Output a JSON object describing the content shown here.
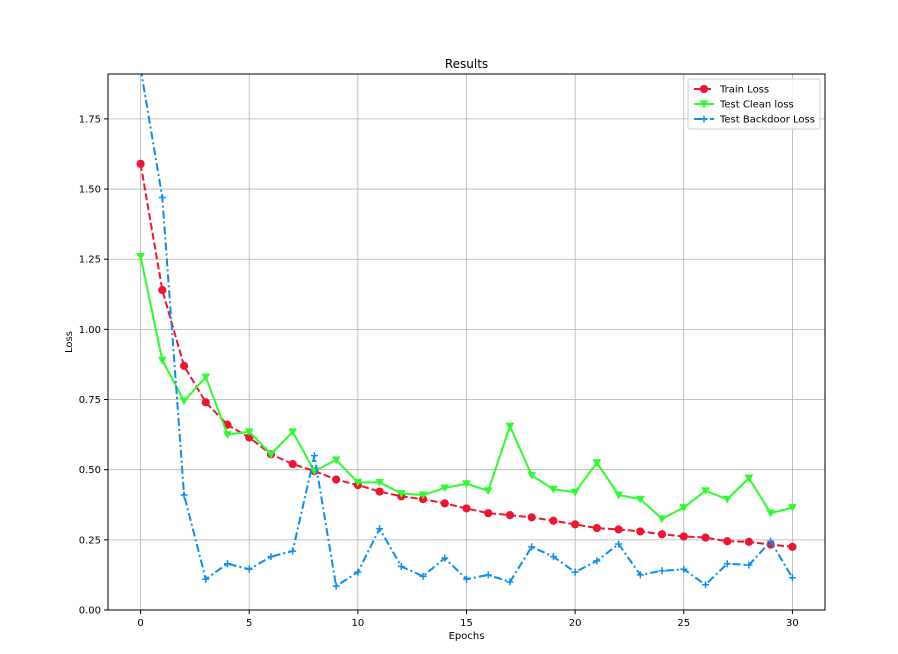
{
  "chart_data": {
    "type": "line",
    "title": "Results",
    "xlabel": "Epochs",
    "ylabel": "Loss",
    "xlim": [
      -1.5,
      31.5
    ],
    "ylim": [
      0.0,
      1.91
    ],
    "x_ticks": [
      0,
      5,
      10,
      15,
      20,
      25,
      30
    ],
    "y_ticks": [
      0.0,
      0.25,
      0.5,
      0.75,
      1.0,
      1.25,
      1.5,
      1.75
    ],
    "y_tick_labels": [
      "0.00",
      "0.25",
      "0.50",
      "0.75",
      "1.00",
      "1.25",
      "1.50",
      "1.75"
    ],
    "grid": true,
    "legend_position": "top-right",
    "x": [
      0,
      1,
      2,
      3,
      4,
      5,
      6,
      7,
      8,
      9,
      10,
      11,
      12,
      13,
      14,
      15,
      16,
      17,
      18,
      19,
      20,
      21,
      22,
      23,
      24,
      25,
      26,
      27,
      28,
      29,
      30
    ],
    "series": [
      {
        "name": "Train Loss",
        "color": "#f0142f",
        "linestyle": "dashed",
        "marker": "circle",
        "values": [
          1.59,
          1.14,
          0.87,
          0.74,
          0.66,
          0.615,
          0.555,
          0.52,
          0.495,
          0.465,
          0.445,
          0.422,
          0.405,
          0.395,
          0.38,
          0.362,
          0.345,
          0.338,
          0.33,
          0.318,
          0.305,
          0.292,
          0.287,
          0.28,
          0.27,
          0.262,
          0.258,
          0.245,
          0.243,
          0.233,
          0.225
        ]
      },
      {
        "name": "Test Clean loss",
        "color": "#2efc2e",
        "linestyle": "solid",
        "marker": "triangle-down",
        "values": [
          1.26,
          0.89,
          0.745,
          0.83,
          0.625,
          0.635,
          0.555,
          0.635,
          0.495,
          0.535,
          0.455,
          0.455,
          0.415,
          0.41,
          0.435,
          0.45,
          0.425,
          0.655,
          0.48,
          0.43,
          0.42,
          0.525,
          0.41,
          0.395,
          0.325,
          0.365,
          0.425,
          0.395,
          0.47,
          0.345,
          0.365
        ]
      },
      {
        "name": "Test Backdoor Loss",
        "color": "#0a8ef0",
        "linestyle": "dashdot",
        "marker": "plus",
        "values": [
          1.93,
          1.47,
          0.41,
          0.11,
          0.165,
          0.145,
          0.19,
          0.21,
          0.55,
          0.085,
          0.135,
          0.29,
          0.155,
          0.12,
          0.185,
          0.11,
          0.125,
          0.1,
          0.225,
          0.19,
          0.135,
          0.175,
          0.235,
          0.125,
          0.14,
          0.145,
          0.09,
          0.165,
          0.16,
          0.245,
          0.115
        ]
      }
    ]
  }
}
